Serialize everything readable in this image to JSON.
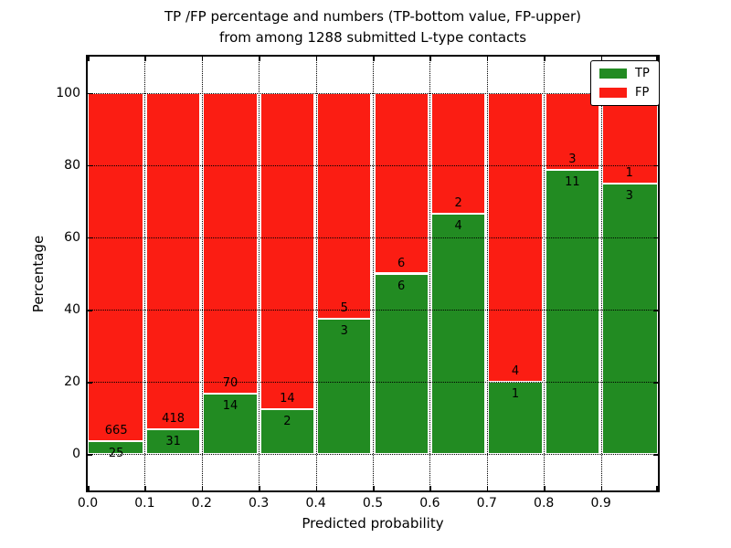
{
  "title": {
    "line1": "TP /FP percentage and numbers (TP-bottom value, FP-upper)",
    "line2": "from among 1288 submitted L-type contacts"
  },
  "colors": {
    "tp_green": "#228b22",
    "fp_red": "#fb1d13",
    "grid": "#000000",
    "background": "#ffffff"
  },
  "legend": {
    "items": [
      {
        "label": "TP",
        "color": "#228b22"
      },
      {
        "label": "FP",
        "color": "#fb1d13"
      }
    ],
    "position": "upper-right"
  },
  "chart_data": {
    "type": "bar",
    "subtype": "stacked-percentage",
    "title": "TP /FP percentage and numbers (TP-bottom value, FP-upper) from among 1288 submitted L-type contacts",
    "xlabel": "Predicted probability",
    "ylabel": "Percentage",
    "total_contacts": 1288,
    "bin_starts": [
      0.0,
      0.1,
      0.2,
      0.3,
      0.4,
      0.5,
      0.6,
      0.7,
      0.8,
      0.9
    ],
    "bin_width": 0.1,
    "xlim": [
      0.0,
      1.0
    ],
    "ylim": [
      -10,
      110
    ],
    "xtick_labels": [
      "0.0",
      "0.1",
      "0.2",
      "0.3",
      "0.4",
      "0.5",
      "0.6",
      "0.7",
      "0.8",
      "0.9"
    ],
    "ytick_values": [
      0,
      20,
      40,
      60,
      80,
      100
    ],
    "ytick_labels": [
      "0",
      "20",
      "40",
      "60",
      "80",
      "100"
    ],
    "grid": {
      "visible": true,
      "style": "dotted",
      "on_top": true
    },
    "series": [
      {
        "name": "TP",
        "color": "#228b22",
        "counts": [
          25,
          31,
          14,
          2,
          3,
          6,
          4,
          1,
          11,
          3
        ]
      },
      {
        "name": "FP",
        "color": "#fb1d13",
        "counts": [
          665,
          418,
          70,
          14,
          5,
          6,
          2,
          4,
          3,
          1
        ]
      }
    ],
    "tp_percent_of_bin": [
      3.62,
      6.9,
      16.67,
      12.5,
      37.5,
      50.0,
      66.67,
      20.0,
      78.57,
      75.0
    ],
    "annotation_note": "FP count printed above segment boundary, TP count printed below it"
  }
}
